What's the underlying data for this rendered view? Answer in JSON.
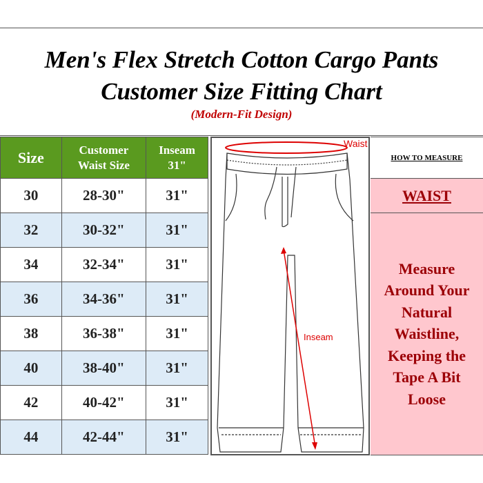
{
  "title": {
    "line1": "Men's Flex Stretch Cotton Cargo Pants",
    "line2": "Customer Size Fitting Chart",
    "subtitle": "(Modern-Fit Design)"
  },
  "table": {
    "headers": [
      "Size",
      "Customer Waist Size",
      "Inseam 31\""
    ],
    "rows": [
      [
        "30",
        "28-30\"",
        "31\""
      ],
      [
        "32",
        "30-32\"",
        "31\""
      ],
      [
        "34",
        "32-34\"",
        "31\""
      ],
      [
        "36",
        "34-36\"",
        "31\""
      ],
      [
        "38",
        "36-38\"",
        "31\""
      ],
      [
        "40",
        "38-40\"",
        "31\""
      ],
      [
        "42",
        "40-42\"",
        "31\""
      ],
      [
        "44",
        "42-44\"",
        "31\""
      ]
    ]
  },
  "diagram": {
    "waist_label": "Waist",
    "inseam_label": "Inseam"
  },
  "measure": {
    "heading": "HOW TO MEASURE",
    "section": "WAIST",
    "instruction": "Measure Around Your Natural Waistline, Keeping the Tape A Bit Loose"
  },
  "colors": {
    "header_green": "#5a9a1f",
    "alt_row": "#ddebf7",
    "pink": "#ffc7ce",
    "dark_red": "#9c0006",
    "title_red": "#c00000"
  }
}
